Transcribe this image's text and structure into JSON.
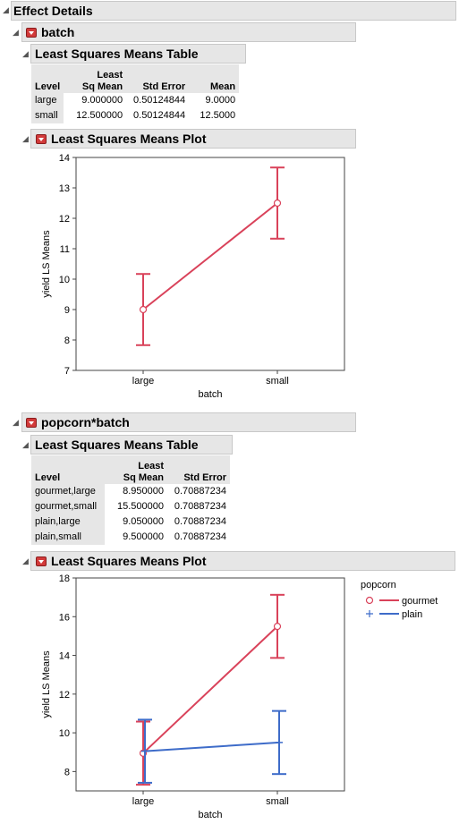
{
  "effect_details": {
    "title": "Effect Details"
  },
  "batch": {
    "title": "batch",
    "table": {
      "title": "Least Squares Means Table",
      "headers": {
        "level": "Level",
        "lsm_top": "Least",
        "lsm_bottom": "Sq Mean",
        "std_error": "Std Error",
        "mean": "Mean"
      },
      "rows": [
        {
          "level": "large",
          "lsmean": "9.000000",
          "std_error": "0.50124844",
          "mean": "9.0000"
        },
        {
          "level": "small",
          "lsmean": "12.500000",
          "std_error": "0.50124844",
          "mean": "12.5000"
        }
      ]
    },
    "plot_title": "Least Squares Means Plot"
  },
  "popcorn_batch": {
    "title": "popcorn*batch",
    "table": {
      "title": "Least Squares Means Table",
      "headers": {
        "level": "Level",
        "lsm_top": "Least",
        "lsm_bottom": "Sq Mean",
        "std_error": "Std Error"
      },
      "rows": [
        {
          "level": "gourmet,large",
          "lsmean": "8.950000",
          "std_error": "0.70887234"
        },
        {
          "level": "gourmet,small",
          "lsmean": "15.500000",
          "std_error": "0.70887234"
        },
        {
          "level": "plain,large",
          "lsmean": "9.050000",
          "std_error": "0.70887234"
        },
        {
          "level": "plain,small",
          "lsmean": "9.500000",
          "std_error": "0.70887234"
        }
      ]
    },
    "plot_title": "Least Squares Means Plot"
  },
  "colors": {
    "gourmet": "#d9425a",
    "plain": "#3e6cc9",
    "header_bg": "#e6e6e6"
  },
  "chart_data": [
    {
      "type": "line",
      "xlabel": "batch",
      "ylabel": "yield LS Means",
      "categories": [
        "large",
        "small"
      ],
      "ylim": [
        7,
        14
      ],
      "yticks": [
        7,
        8,
        9,
        10,
        11,
        12,
        13,
        14
      ],
      "series": [
        {
          "values": [
            9.0,
            12.5
          ],
          "lower": [
            7.83,
            11.33
          ],
          "upper": [
            10.17,
            13.67
          ],
          "marker": "circle",
          "color": "#d9425a"
        }
      ]
    },
    {
      "type": "line",
      "xlabel": "batch",
      "ylabel": "yield LS Means",
      "categories": [
        "large",
        "small"
      ],
      "ylim": [
        7,
        18
      ],
      "yticks": [
        8,
        10,
        12,
        14,
        16,
        18
      ],
      "legend": {
        "title": "popcorn",
        "position": "right"
      },
      "series": [
        {
          "name": "gourmet",
          "values": [
            8.95,
            15.5
          ],
          "lower": [
            7.32,
            13.87
          ],
          "upper": [
            10.58,
            17.13
          ],
          "marker": "circle",
          "color": "#d9425a"
        },
        {
          "name": "plain",
          "values": [
            9.05,
            9.5
          ],
          "lower": [
            7.42,
            7.87
          ],
          "upper": [
            10.68,
            11.13
          ],
          "marker": "plus",
          "color": "#3e6cc9"
        }
      ]
    }
  ]
}
